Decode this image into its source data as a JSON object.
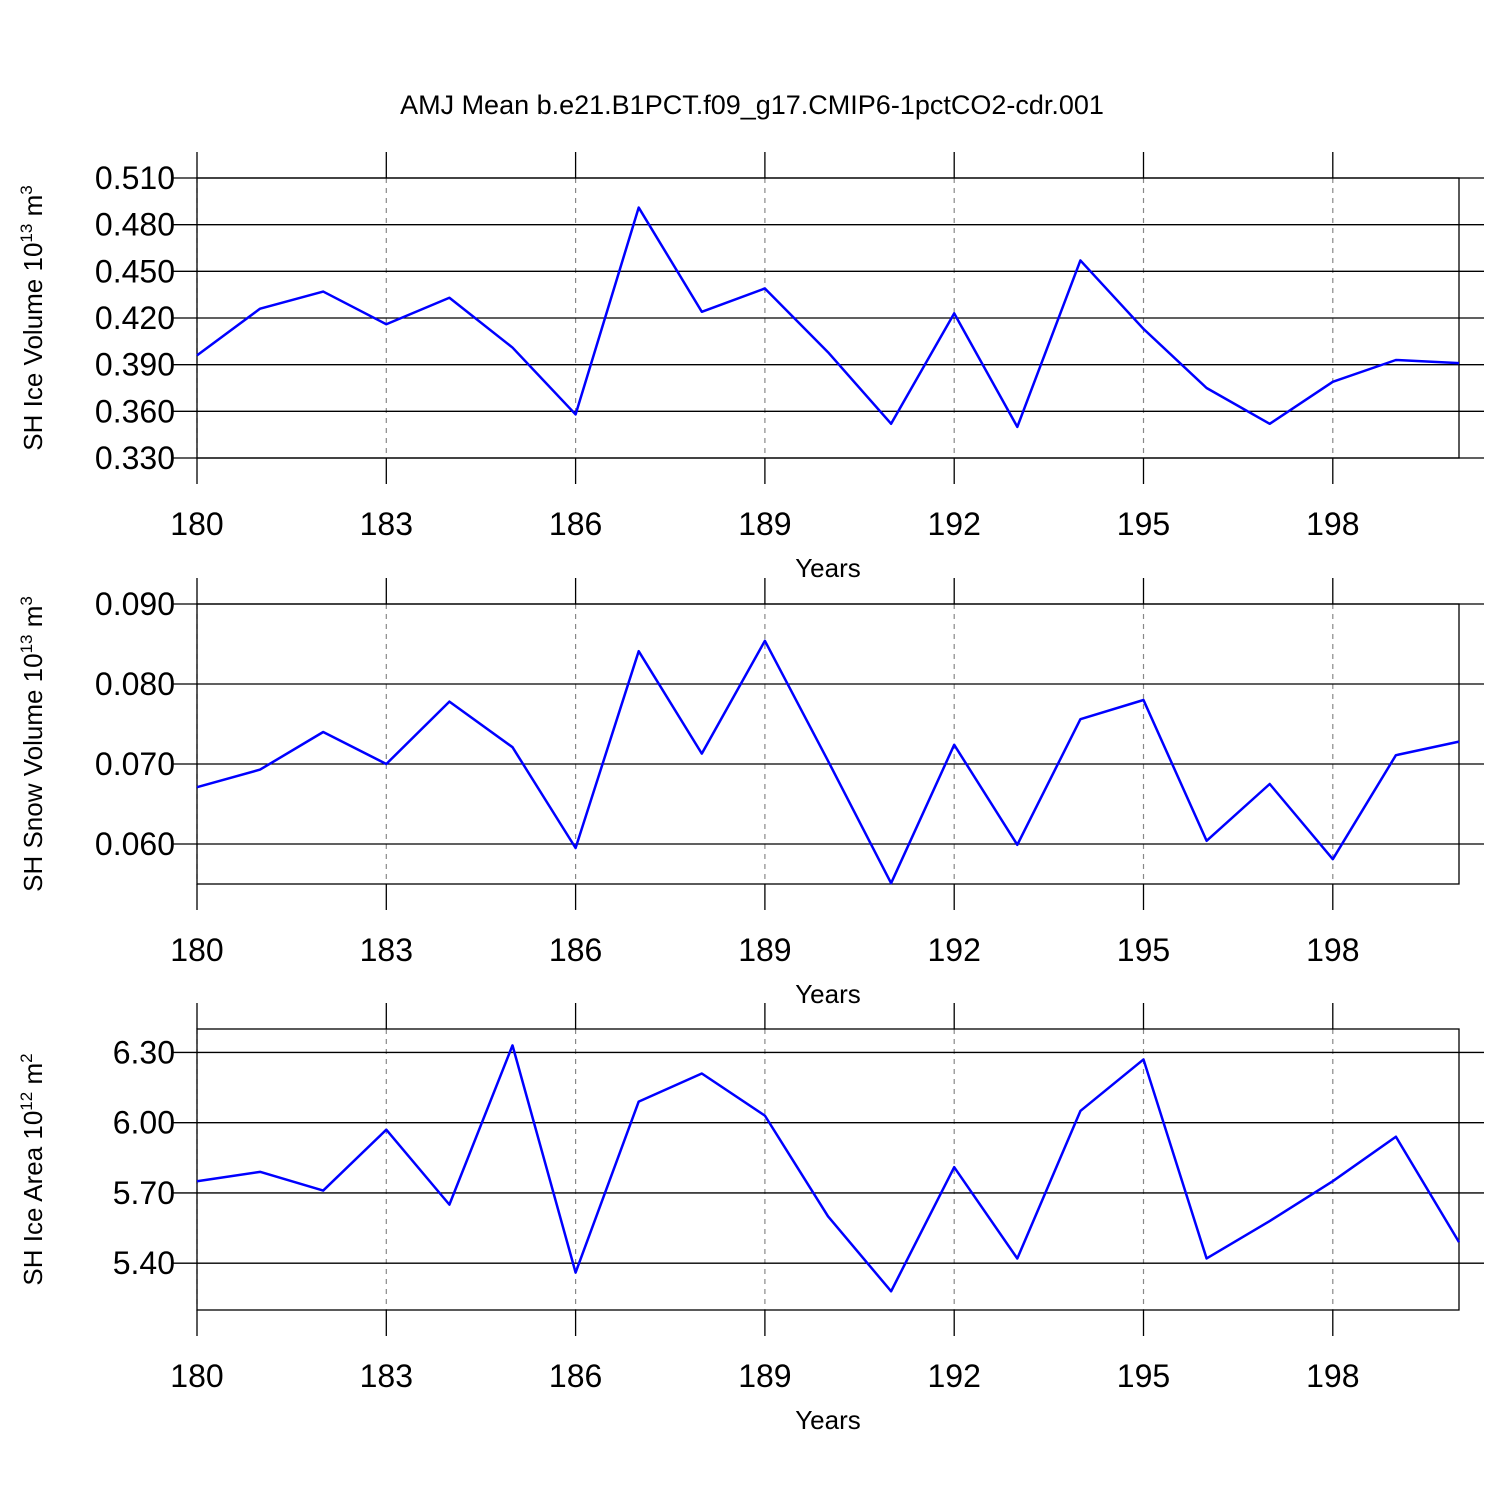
{
  "title": "AMJ Mean b.e21.B1PCT.f09_g17.CMIP6-1pctCO2-cdr.001",
  "chart_data": [
    {
      "type": "line",
      "xlabel": "Years",
      "ylabel": {
        "base": "SH Ice Volume 10",
        "power": "13",
        "unit": " m",
        "unit_power": "3"
      },
      "x": [
        180,
        181,
        182,
        183,
        184,
        185,
        186,
        187,
        188,
        189,
        190,
        191,
        192,
        193,
        194,
        195,
        196,
        197,
        198,
        199,
        200
      ],
      "series": [
        {
          "color": "#0000ff",
          "values": [
            0.396,
            0.426,
            0.437,
            0.416,
            0.433,
            0.401,
            0.358,
            0.491,
            0.424,
            0.439,
            0.398,
            0.352,
            0.423,
            0.35,
            0.457,
            0.413,
            0.375,
            0.352,
            0.379,
            0.393,
            0.391
          ]
        }
      ],
      "xlim": [
        180,
        200
      ],
      "xticks": [
        180,
        183,
        186,
        189,
        192,
        195,
        198
      ],
      "ylim": [
        0.33,
        0.51
      ],
      "yticks": [
        {
          "value": 0.33,
          "label": "0.330"
        },
        {
          "value": 0.36,
          "label": "0.360"
        },
        {
          "value": 0.39,
          "label": "0.390"
        },
        {
          "value": 0.42,
          "label": "0.420"
        },
        {
          "value": 0.45,
          "label": "0.450"
        },
        {
          "value": 0.48,
          "label": "0.480"
        },
        {
          "value": 0.51,
          "label": "0.510"
        }
      ],
      "xgrid": true
    },
    {
      "type": "line",
      "xlabel": "Years",
      "ylabel": {
        "base": "SH Snow Volume 10",
        "power": "13",
        "unit": " m",
        "unit_power": "3"
      },
      "x": [
        180,
        181,
        182,
        183,
        184,
        185,
        186,
        187,
        188,
        189,
        190,
        191,
        192,
        193,
        194,
        195,
        196,
        197,
        198,
        199,
        200
      ],
      "series": [
        {
          "color": "#0000ff",
          "values": [
            0.0671,
            0.0693,
            0.074,
            0.07,
            0.0778,
            0.0721,
            0.0595,
            0.0841,
            0.0713,
            0.0854,
            0.0704,
            0.0551,
            0.0724,
            0.0599,
            0.0756,
            0.078,
            0.0604,
            0.0675,
            0.0581,
            0.0711,
            0.0728
          ]
        }
      ],
      "xlim": [
        180,
        200
      ],
      "xticks": [
        180,
        183,
        186,
        189,
        192,
        195,
        198
      ],
      "ylim": [
        0.055,
        0.09
      ],
      "yticks": [
        {
          "value": 0.06,
          "label": "0.060"
        },
        {
          "value": 0.07,
          "label": "0.070"
        },
        {
          "value": 0.08,
          "label": "0.080"
        },
        {
          "value": 0.09,
          "label": "0.090"
        }
      ],
      "xgrid": true
    },
    {
      "type": "line",
      "xlabel": "Years",
      "ylabel": {
        "base": "SH Ice Area 10",
        "power": "12",
        "unit": " m",
        "unit_power": "2"
      },
      "x": [
        180,
        181,
        182,
        183,
        184,
        185,
        186,
        187,
        188,
        189,
        190,
        191,
        192,
        193,
        194,
        195,
        196,
        197,
        198,
        199,
        200
      ],
      "series": [
        {
          "color": "#0000ff",
          "values": [
            5.75,
            5.79,
            5.71,
            5.97,
            5.65,
            6.33,
            5.36,
            6.09,
            6.21,
            6.03,
            5.6,
            5.28,
            5.81,
            5.42,
            6.05,
            6.27,
            5.42,
            5.58,
            5.75,
            5.94,
            5.49
          ]
        }
      ],
      "xlim": [
        180,
        200
      ],
      "xticks": [
        180,
        183,
        186,
        189,
        192,
        195,
        198
      ],
      "ylim": [
        5.2,
        6.4
      ],
      "yticks": [
        {
          "value": 5.4,
          "label": "5.40"
        },
        {
          "value": 5.7,
          "label": "5.70"
        },
        {
          "value": 6.0,
          "label": "6.00"
        },
        {
          "value": 6.3,
          "label": "6.30"
        }
      ],
      "xgrid": true
    }
  ]
}
